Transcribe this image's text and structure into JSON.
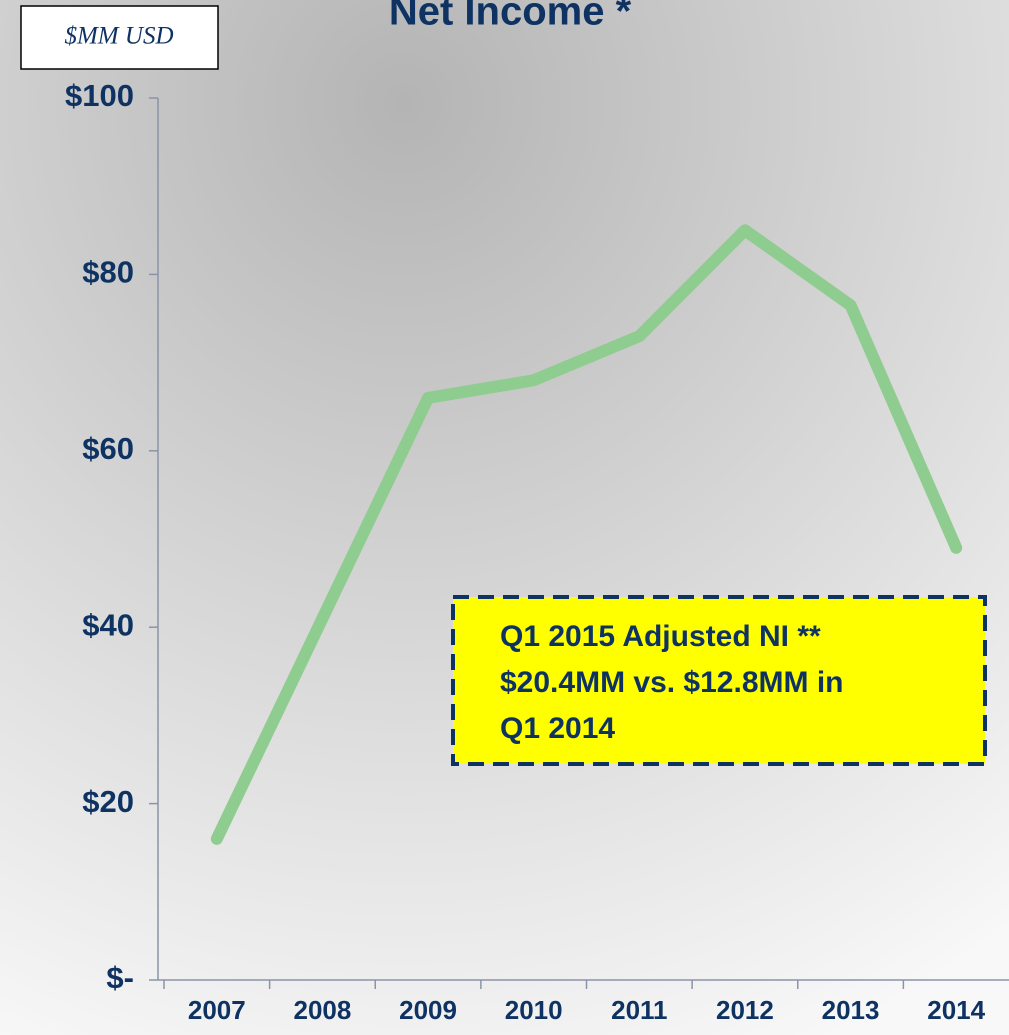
{
  "chart_data": {
    "type": "line",
    "title": "Net Income *",
    "unit_label": "$MM USD",
    "categories": [
      "2007",
      "2008",
      "2009",
      "2010",
      "2011",
      "2012",
      "2013",
      "2014"
    ],
    "series": [
      {
        "name": "Net Income",
        "color": "#8fcc8f",
        "values": [
          16,
          41,
          66,
          68,
          73,
          85,
          76.5,
          49
        ]
      }
    ],
    "ylim": [
      0,
      100
    ],
    "yticks": [
      {
        "value": 0,
        "label": "$-"
      },
      {
        "value": 20,
        "label": "$20"
      },
      {
        "value": 40,
        "label": "$40"
      },
      {
        "value": 60,
        "label": "$60"
      },
      {
        "value": 80,
        "label": "$80"
      },
      {
        "value": 100,
        "label": "$100"
      }
    ],
    "annotation": [
      "Q1 2015 Adjusted NI **",
      "$20.4MM vs. $12.8MM in",
      "Q1 2014"
    ]
  }
}
